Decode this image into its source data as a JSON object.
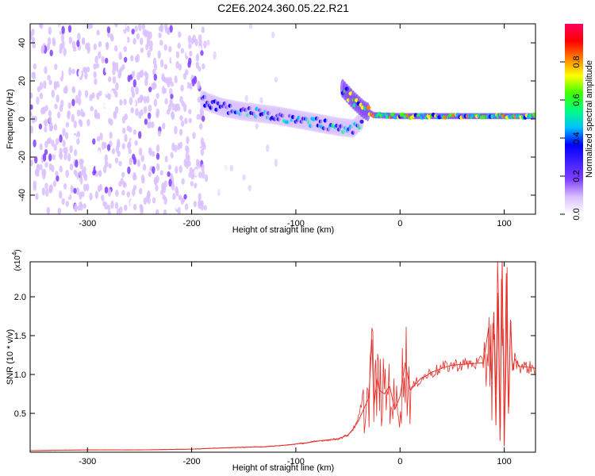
{
  "figure": {
    "title": "C2E6.2024.360.05.22.R21"
  },
  "chart_data": [
    {
      "type": "heatmap",
      "panel": "spectrogram",
      "xlabel": "Height of straight line (km)",
      "ylabel": "Frequency (Hz)",
      "xlim": [
        -355,
        130
      ],
      "ylim": [
        -50,
        50
      ],
      "xticks": [
        -300,
        -200,
        -100,
        0,
        100
      ],
      "yticks": [
        -40,
        -20,
        0,
        20,
        40
      ],
      "grid": false,
      "colorbar": {
        "label": "Normalized spectral amplitude",
        "range": [
          0,
          1
        ],
        "ticks": [
          0.0,
          0.2,
          0.4,
          0.6,
          0.8
        ],
        "colors": [
          "#ffffff",
          "#d9bfff",
          "#8040ff",
          "#4020ff",
          "#0000ff",
          "#00c0ff",
          "#00ff80",
          "#40ff00",
          "#ffff00",
          "#ff8000",
          "#ff0000",
          "#ff0060"
        ]
      },
      "features": [
        {
          "name": "noise",
          "x_range": [
            -355,
            -185
          ],
          "freq_range": [
            -50,
            50
          ],
          "amplitude": 0.08
        },
        {
          "name": "sparse noise",
          "x_range": [
            -185,
            -115
          ],
          "freq_range": [
            -50,
            50
          ],
          "amplitude": 0.03
        },
        {
          "name": "tone",
          "points": [
            [
              -190,
              10
            ],
            [
              -170,
              6
            ],
            [
              -150,
              4
            ],
            [
              -120,
              2
            ],
            [
              -100,
              0
            ],
            [
              -80,
              -2
            ],
            [
              -60,
              -4
            ],
            [
              -45,
              -5
            ],
            [
              -35,
              0
            ]
          ],
          "amplitude": 0.35
        },
        {
          "name": "tone",
          "points": [
            [
              -55,
              16
            ],
            [
              -45,
              10
            ],
            [
              -35,
              5
            ],
            [
              -25,
              2
            ],
            [
              0,
              1.5
            ],
            [
              50,
              1.5
            ],
            [
              80,
              1.5
            ],
            [
              100,
              1.5
            ],
            [
              130,
              1.5
            ]
          ],
          "amplitude": 0.55
        }
      ]
    },
    {
      "type": "line",
      "panel": "snr",
      "xlabel": "Height of straight line (km)",
      "ylabel": "SNR (10 * v/v)",
      "y_multiplier_label": "(x10",
      "y_multiplier_exp": "4",
      "y_multiplier_close": ")",
      "xlim": [
        -355,
        130
      ],
      "ylim": [
        0,
        2.45
      ],
      "xticks": [
        -300,
        -200,
        -100,
        0,
        100
      ],
      "yticks": [
        0.5,
        1.0,
        1.5,
        2.0
      ],
      "line_color": "#e8302a",
      "series": [
        {
          "x": [
            -355,
            -300,
            -250,
            -200,
            -160,
            -130,
            -110,
            -90,
            -75,
            -60,
            -50,
            -45,
            -40,
            -35,
            -30,
            -27,
            -25,
            -22,
            -20,
            -15,
            -10,
            -5,
            0,
            5,
            10,
            15,
            20,
            25,
            30,
            35,
            40,
            45,
            50,
            60,
            70,
            80,
            85,
            88,
            90,
            92,
            94,
            96,
            98,
            100,
            102,
            104,
            106,
            108,
            110,
            115,
            120,
            125,
            130
          ],
          "y": [
            0.02,
            0.03,
            0.03,
            0.04,
            0.06,
            0.07,
            0.09,
            0.12,
            0.15,
            0.17,
            0.22,
            0.3,
            0.4,
            0.55,
            0.7,
            1.45,
            0.6,
            0.95,
            0.8,
            0.75,
            0.85,
            0.55,
            0.72,
            1.15,
            0.8,
            0.88,
            0.95,
            0.98,
            1.03,
            1.05,
            1.08,
            1.1,
            1.12,
            1.13,
            1.14,
            1.15,
            1.6,
            0.95,
            1.8,
            0.35,
            2.05,
            0.15,
            2.45,
            0.08,
            2.3,
            0.5,
            1.7,
            1.05,
            1.2,
            1.1,
            1.1,
            1.09,
            1.08
          ]
        }
      ]
    }
  ]
}
